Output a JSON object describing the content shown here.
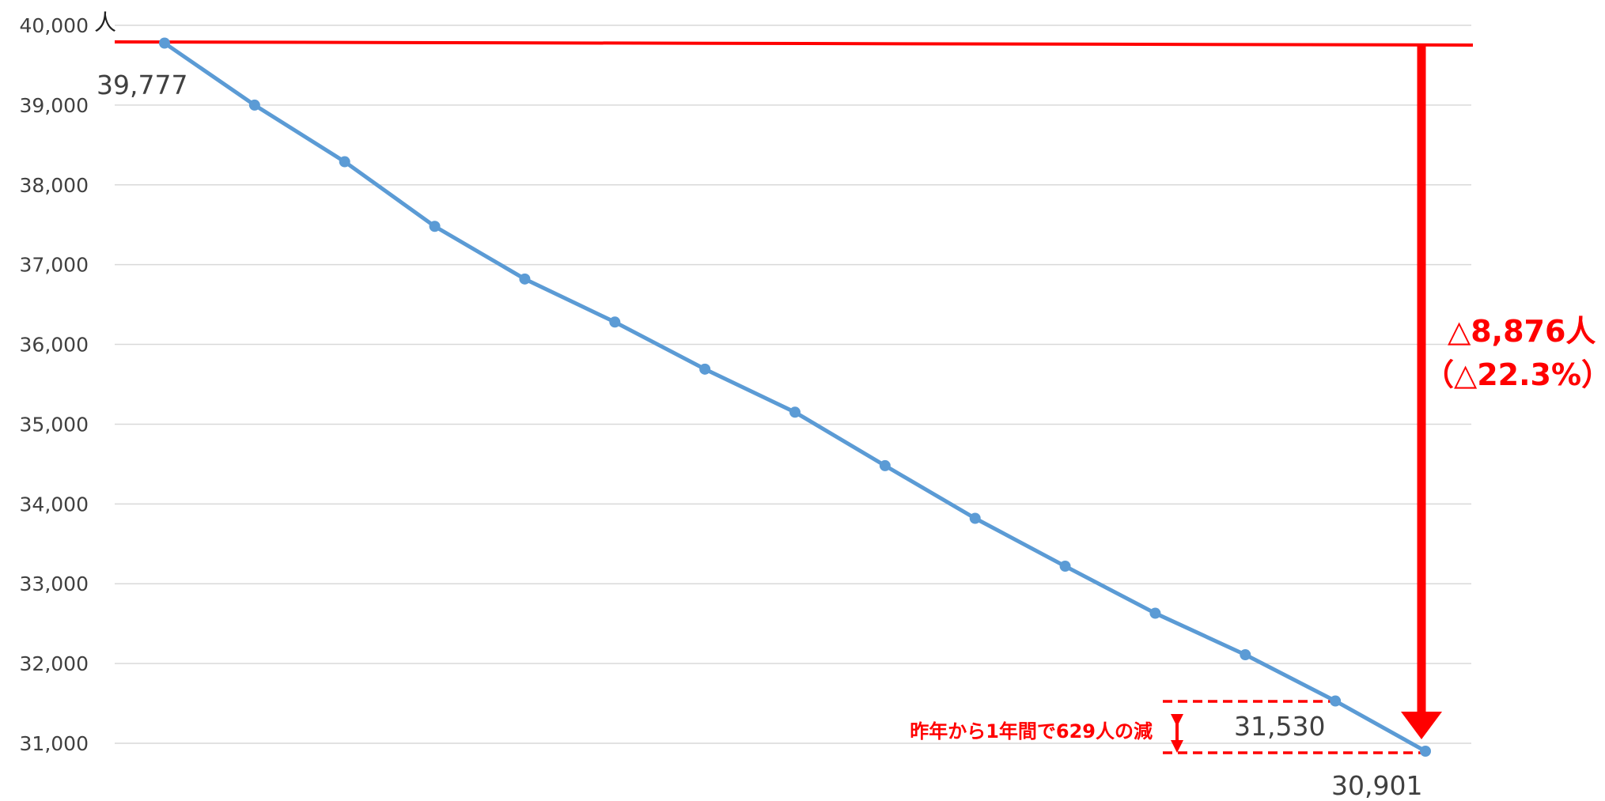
{
  "chart_data": {
    "type": "line",
    "unit_label": "人",
    "ylim": [
      31000,
      40000
    ],
    "y_ticks": [
      "40,000",
      "39,000",
      "38,000",
      "37,000",
      "36,000",
      "35,000",
      "34,000",
      "33,000",
      "32,000",
      "31,000"
    ],
    "grid": true,
    "series": [
      {
        "values": [
          39777,
          39000,
          38290,
          37480,
          36820,
          36280,
          35690,
          35150,
          34480,
          33820,
          33220,
          32630,
          32110,
          31530,
          30901
        ]
      }
    ],
    "data_labels": {
      "first": "39,777",
      "second_last": "31,530",
      "last": "30,901"
    },
    "annotations": {
      "total_change": "△8,876人",
      "total_change_pct": "（△22.3%）",
      "yearly_change": "昨年から1年間で629人の減"
    },
    "colors": {
      "series": "#5b9bd5",
      "annotation": "#ff0000",
      "grid": "#d9d9d9"
    }
  }
}
